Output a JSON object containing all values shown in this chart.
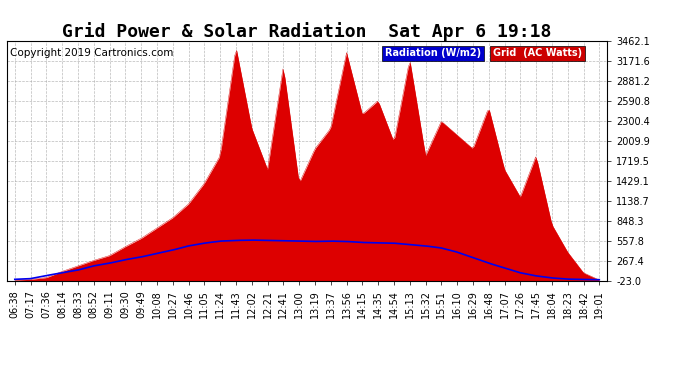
{
  "title": "Grid Power & Solar Radiation  Sat Apr 6 19:18",
  "copyright": "Copyright 2019 Cartronics.com",
  "yticks": [
    3462.1,
    3171.6,
    2881.2,
    2590.8,
    2300.4,
    2009.9,
    1719.5,
    1429.1,
    1138.7,
    848.3,
    557.8,
    267.4,
    -23.0
  ],
  "ymin": -23.0,
  "ymax": 3462.1,
  "legend_radiation_label": "Radiation (W/m2)",
  "legend_grid_label": "Grid  (AC Watts)",
  "legend_radiation_bg": "#0000cc",
  "legend_grid_bg": "#cc0000",
  "background_color": "#ffffff",
  "grid_color": "#aaaaaa",
  "title_fontsize": 13,
  "copyright_fontsize": 7.5,
  "tick_fontsize": 7,
  "xtick_labels": [
    "06:38",
    "07:17",
    "07:36",
    "08:14",
    "08:33",
    "08:52",
    "09:11",
    "09:30",
    "09:49",
    "10:08",
    "10:27",
    "10:46",
    "11:05",
    "11:24",
    "11:43",
    "12:02",
    "12:21",
    "12:41",
    "13:00",
    "13:19",
    "13:37",
    "13:56",
    "14:15",
    "14:35",
    "14:54",
    "15:13",
    "15:32",
    "15:51",
    "16:10",
    "16:29",
    "16:48",
    "17:07",
    "17:26",
    "17:45",
    "18:04",
    "18:23",
    "18:42",
    "19:01"
  ],
  "radiation_color": "#0000ee",
  "grid_ac_color": "#dd0000",
  "radiation_data": [
    5,
    15,
    60,
    100,
    140,
    200,
    240,
    290,
    330,
    380,
    430,
    490,
    530,
    560,
    570,
    575,
    570,
    565,
    560,
    555,
    560,
    555,
    540,
    535,
    530,
    510,
    490,
    460,
    400,
    320,
    240,
    170,
    100,
    55,
    25,
    8,
    2,
    0
  ],
  "grid_ac_data": [
    -5,
    5,
    30,
    120,
    200,
    280,
    350,
    480,
    600,
    750,
    900,
    1100,
    1400,
    1800,
    3380,
    2200,
    1600,
    3100,
    1400,
    1900,
    2200,
    3300,
    2400,
    2600,
    2000,
    3200,
    1800,
    2300,
    2100,
    1900,
    2500,
    1600,
    1200,
    1800,
    800,
    400,
    100,
    -5
  ]
}
